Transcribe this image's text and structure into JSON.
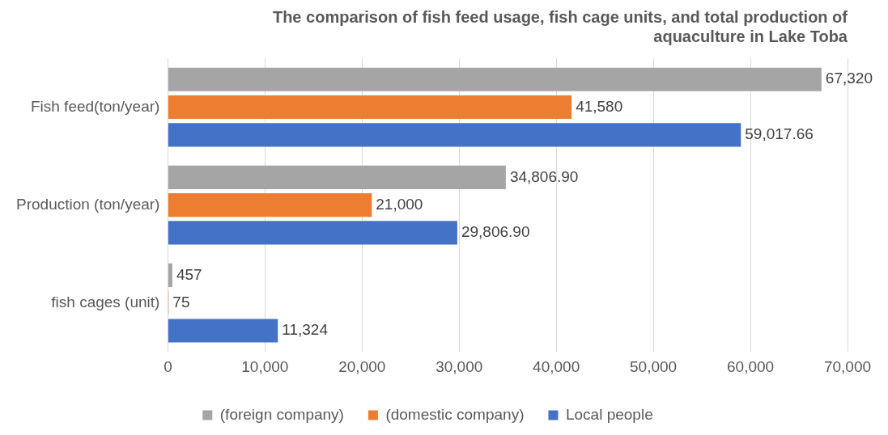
{
  "chart_data": {
    "type": "bar",
    "orientation": "horizontal",
    "title": "The comparison of fish feed usage, fish cage units, and total production of aquaculture in Lake Toba",
    "categories": [
      "Fish feed(ton/year)",
      "Production (ton/year)",
      "fish cages (unit)"
    ],
    "series": [
      {
        "name": "(foreign company)",
        "color": "#a5a5a5",
        "values": [
          67320,
          34806.9,
          457
        ],
        "value_labels": [
          "67,320",
          "34,806.90",
          "457"
        ]
      },
      {
        "name": "(domestic company)",
        "color": "#ed7d31",
        "values": [
          41580,
          21000,
          75
        ],
        "value_labels": [
          "41,580",
          "21,000",
          "75"
        ]
      },
      {
        "name": "Local people",
        "color": "#4472c4",
        "values": [
          59017.66,
          29806.9,
          11324
        ],
        "value_labels": [
          "59,017.66",
          "29,806.90",
          "11,324"
        ]
      }
    ],
    "xlim": [
      0,
      70000
    ],
    "xticks": [
      0,
      {
        "value": 10000,
        "label": "10,000"
      },
      {
        "value": 20000,
        "label": "20,000"
      },
      {
        "value": 30000,
        "label": "30,000"
      },
      {
        "value": 40000,
        "label": "40,000"
      },
      {
        "value": 50000,
        "label": "50,000"
      },
      {
        "value": 60000,
        "label": "60,000"
      },
      {
        "value": 70000,
        "label": "70,000"
      }
    ],
    "grid": "x",
    "legend": "bottom"
  }
}
